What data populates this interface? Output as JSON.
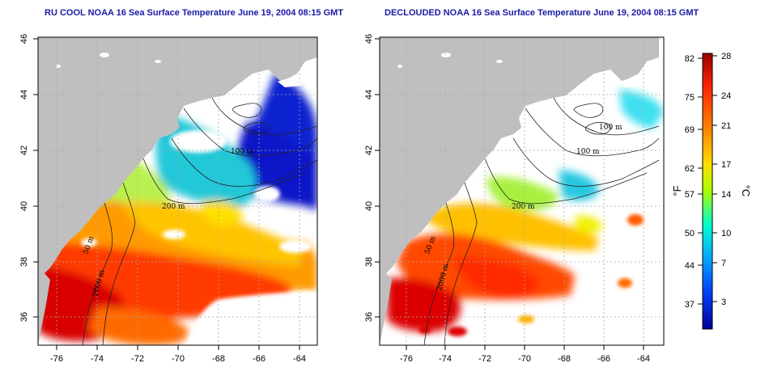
{
  "panels": [
    {
      "title": "RU COOL NOAA 16 Sea Surface Temperature June 19, 2004 08:15 GMT",
      "contour_labels": [
        "100 m",
        "200 m",
        "50 m",
        "2000 m"
      ]
    },
    {
      "title": "DECLOUDED NOAA 16 Sea Surface Temperature June 19, 2004 08:15 GMT",
      "contour_labels": [
        "100 m",
        "100 m",
        "200 m",
        "50 m",
        "2000 m"
      ]
    }
  ],
  "axes": {
    "x_ticks": [
      "-76",
      "-74",
      "-72",
      "-70",
      "-68",
      "-66",
      "-64"
    ],
    "y_ticks": [
      "36",
      "38",
      "40",
      "42",
      "44",
      "46"
    ]
  },
  "colorbar": {
    "fahrenheit_label": "°F",
    "celsius_label": "°C",
    "fahrenheit_ticks": [
      "82",
      "75",
      "69",
      "62",
      "57",
      "50",
      "44",
      "37"
    ],
    "celsius_ticks": [
      "28",
      "24",
      "21",
      "17",
      "14",
      "10",
      "7",
      "3"
    ],
    "gradient_colors": [
      "#990000",
      "#ff2200",
      "#ff8800",
      "#ffdd00",
      "#aaff00",
      "#00ffcc",
      "#00aaff",
      "#0044ff",
      "#000099"
    ]
  },
  "colors": {
    "land": "#bfbfbf",
    "title": "#1a1aa6",
    "grid": "#aaaaaa"
  }
}
